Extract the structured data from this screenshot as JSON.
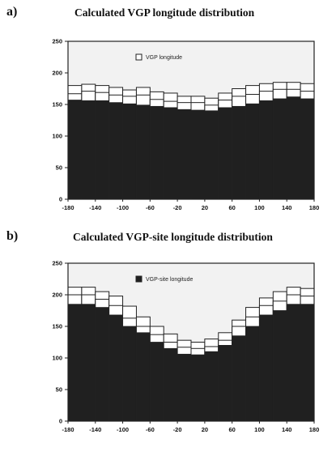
{
  "chart_data": [
    {
      "type": "bar",
      "panel_label": "a)",
      "title": "Calculated VGP longitude distribution",
      "xlabel": "",
      "ylabel": "",
      "ylim": [
        0,
        250
      ],
      "yticks": [
        0,
        50,
        100,
        150,
        200,
        250
      ],
      "xticks": [
        -180,
        -140,
        -100,
        -60,
        -20,
        20,
        60,
        100,
        140,
        180
      ],
      "x_bin_edges": [
        -180,
        -160,
        -140,
        -120,
        -100,
        -80,
        -60,
        -40,
        -20,
        0,
        20,
        40,
        60,
        80,
        100,
        120,
        140,
        160,
        180
      ],
      "grid": false,
      "legend": {
        "placement": "top-left",
        "label": "VGP longitude",
        "swatch": "open"
      },
      "series": [
        {
          "style": "dark-fill-with-open-stack",
          "values": [
            157,
            156,
            156,
            153,
            151,
            149,
            147,
            145,
            142,
            141,
            140,
            145,
            147,
            151,
            156,
            159,
            162,
            159
          ],
          "stack_bands": [
            [
              167,
              171,
              169,
              165,
              163,
              165,
              158,
              155,
              153,
              153,
              149,
              157,
              163,
              166,
              171,
              174,
              174,
              171
            ],
            [
              180,
              182,
              180,
              177,
              173,
              177,
              170,
              168,
              163,
              163,
              160,
              168,
              175,
              180,
              183,
              185,
              185,
              183
            ]
          ]
        }
      ]
    },
    {
      "type": "bar",
      "panel_label": "b)",
      "title": "Calculated VGP-site longitude distribution",
      "xlabel": "",
      "ylabel": "",
      "ylim": [
        0,
        250
      ],
      "yticks": [
        0,
        50,
        100,
        150,
        200,
        250
      ],
      "xticks": [
        -180,
        -140,
        -100,
        -60,
        -20,
        20,
        60,
        100,
        140,
        180
      ],
      "x_bin_edges": [
        -180,
        -160,
        -140,
        -120,
        -100,
        -80,
        -60,
        -40,
        -20,
        0,
        20,
        40,
        60,
        80,
        100,
        120,
        140,
        160,
        180
      ],
      "grid": false,
      "legend": {
        "placement": "top-left",
        "label": "VGP-site longitude",
        "swatch": "filled"
      },
      "series": [
        {
          "style": "dark-fill-with-open-stack",
          "values": [
            185,
            185,
            180,
            168,
            150,
            140,
            125,
            115,
            106,
            105,
            110,
            120,
            135,
            150,
            168,
            175,
            185,
            185
          ],
          "stack_bands": [
            [
              200,
              200,
              193,
              183,
              163,
              150,
              137,
              125,
              117,
              115,
              118,
              128,
              150,
              165,
              183,
              190,
              200,
              198
            ],
            [
              212,
              212,
              205,
              198,
              182,
              165,
              150,
              138,
              128,
              125,
              130,
              140,
              160,
              180,
              195,
              205,
              212,
              210
            ]
          ]
        }
      ]
    }
  ],
  "colors": {
    "bar_fill": "#202020",
    "stack_fill": "#ffffff",
    "frame": "#222222",
    "plot_bg": "#f2f2f2"
  }
}
